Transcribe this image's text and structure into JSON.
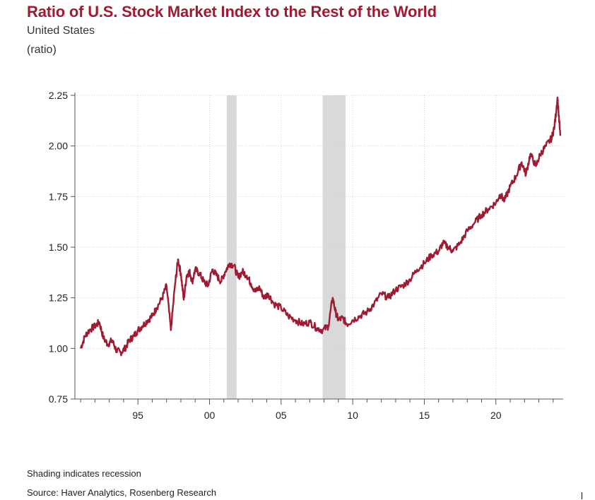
{
  "header": {
    "title": "Ratio of U.S. Stock Market Index to the Rest of the World",
    "subtitle": "United States",
    "unit": "(ratio)"
  },
  "footer": {
    "note": "Shading indicates recession",
    "source": "Source: Haver Analytics, Rosenberg Research"
  },
  "colors": {
    "title": "#9e1b32",
    "line": "#9e1b32",
    "recession": "#d9d9d9",
    "grid": "#d0d0d0"
  },
  "chart_data": {
    "type": "line",
    "title": "Ratio of U.S. Stock Market Index to the Rest of the World",
    "subtitle": "United States",
    "ylabel": "(ratio)",
    "ylim": [
      0.75,
      2.25
    ],
    "xlim": [
      1990.6,
      2024.7
    ],
    "yticks": [
      0.75,
      1.0,
      1.25,
      1.5,
      1.75,
      2.0,
      2.25
    ],
    "ytick_labels": [
      "0.75",
      "1.00",
      "1.25",
      "1.50",
      "1.75",
      "2.00",
      "2.25"
    ],
    "xticks": [
      1995,
      2000,
      2005,
      2010,
      2015,
      2020
    ],
    "xtick_labels": [
      "95",
      "00",
      "05",
      "10",
      "15",
      "20"
    ],
    "grid": true,
    "recessions": [
      [
        2001.2,
        2001.9
      ],
      [
        2007.9,
        2009.5
      ]
    ],
    "series": [
      {
        "x": [
          1991.0,
          1991.3,
          1991.6,
          1992.0,
          1992.3,
          1992.6,
          1992.9,
          1993.2,
          1993.5,
          1993.8,
          1994.1,
          1994.4,
          1994.7,
          1995.0,
          1995.3,
          1995.7,
          1996.0,
          1996.3,
          1996.7,
          1997.0,
          1997.3,
          1997.6,
          1997.8,
          1998.0,
          1998.2,
          1998.4,
          1998.6,
          1998.8,
          1999.0,
          1999.3,
          1999.6,
          1999.9,
          2000.2,
          2000.5,
          2000.8,
          2001.1,
          2001.4,
          2001.7,
          2002.0,
          2002.3,
          2002.6,
          2002.9,
          2003.2,
          2003.5,
          2003.8,
          2004.1,
          2004.5,
          2005.0,
          2005.5,
          2006.0,
          2006.5,
          2007.0,
          2007.5,
          2007.9,
          2008.3,
          2008.6,
          2008.8,
          2009.0,
          2009.3,
          2009.6,
          2010.0,
          2010.5,
          2011.0,
          2011.5,
          2012.0,
          2012.5,
          2013.0,
          2013.5,
          2014.0,
          2014.5,
          2015.0,
          2015.5,
          2016.0,
          2016.3,
          2016.7,
          2017.0,
          2017.5,
          2018.0,
          2018.5,
          2019.0,
          2019.5,
          2020.0,
          2020.3,
          2020.6,
          2021.0,
          2021.4,
          2021.8,
          2022.1,
          2022.4,
          2022.8,
          2023.1,
          2023.5,
          2023.9,
          2024.1,
          2024.3,
          2024.5
        ],
        "values": [
          1.0,
          1.06,
          1.09,
          1.11,
          1.13,
          1.05,
          1.02,
          1.04,
          0.99,
          0.98,
          1.0,
          1.04,
          1.06,
          1.09,
          1.11,
          1.14,
          1.16,
          1.2,
          1.25,
          1.31,
          1.09,
          1.32,
          1.44,
          1.37,
          1.24,
          1.36,
          1.38,
          1.33,
          1.39,
          1.37,
          1.33,
          1.31,
          1.39,
          1.36,
          1.33,
          1.38,
          1.42,
          1.41,
          1.35,
          1.38,
          1.36,
          1.32,
          1.28,
          1.3,
          1.25,
          1.27,
          1.22,
          1.2,
          1.16,
          1.14,
          1.12,
          1.13,
          1.1,
          1.09,
          1.11,
          1.25,
          1.18,
          1.14,
          1.15,
          1.12,
          1.14,
          1.16,
          1.18,
          1.22,
          1.27,
          1.25,
          1.29,
          1.31,
          1.34,
          1.39,
          1.42,
          1.46,
          1.48,
          1.52,
          1.5,
          1.48,
          1.52,
          1.58,
          1.62,
          1.66,
          1.69,
          1.72,
          1.76,
          1.73,
          1.8,
          1.85,
          1.92,
          1.86,
          1.96,
          1.9,
          1.96,
          2.0,
          2.04,
          2.1,
          2.24,
          2.05
        ]
      }
    ]
  }
}
